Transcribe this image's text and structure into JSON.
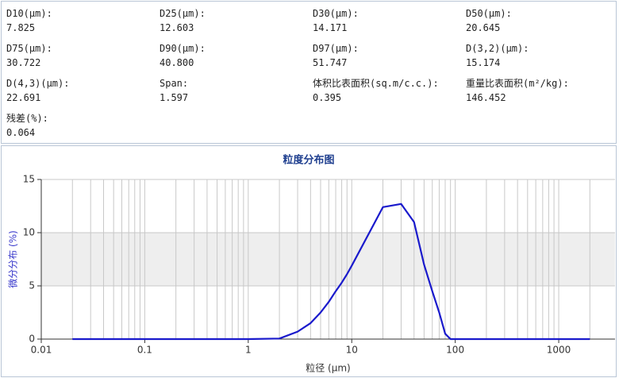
{
  "stats": [
    {
      "label": "D10(μm):",
      "value": "7.825"
    },
    {
      "label": "D25(μm):",
      "value": "12.603"
    },
    {
      "label": "D30(μm):",
      "value": "14.171"
    },
    {
      "label": "D50(μm):",
      "value": "20.645"
    },
    {
      "label": "D75(μm):",
      "value": "30.722"
    },
    {
      "label": "D90(μm):",
      "value": "40.800"
    },
    {
      "label": "D97(μm):",
      "value": "51.747"
    },
    {
      "label": "D(3,2)(μm):",
      "value": "15.174"
    },
    {
      "label": "D(4,3)(μm):",
      "value": "22.691"
    },
    {
      "label": "Span:",
      "value": "1.597"
    },
    {
      "label": "体积比表面积(sq.m/c.c.):",
      "value": "0.395"
    },
    {
      "label": "重量比表面积(m²/kg):",
      "value": "146.452"
    },
    {
      "label": "残差(%):",
      "value": "0.064"
    }
  ],
  "chart_data": {
    "type": "line",
    "title": "粒度分布图",
    "x_label": "粒径 (μm)",
    "y_label": "微分分布 (%)",
    "x_log": true,
    "xlim": [
      0.01,
      3500
    ],
    "xticks": [
      0.01,
      0.1,
      1,
      10,
      100,
      1000
    ],
    "ylim": [
      0,
      15
    ],
    "yticks": [
      0,
      5,
      10,
      15
    ],
    "band": [
      5,
      10
    ],
    "grid": true,
    "x": [
      0.02,
      0.03,
      0.04,
      0.05,
      0.06,
      0.07,
      0.08,
      0.09,
      0.1,
      0.2,
      0.3,
      0.4,
      0.5,
      0.6,
      0.7,
      0.8,
      0.9,
      1,
      2,
      3,
      4,
      5,
      6,
      7,
      8,
      9,
      10,
      20,
      30,
      40,
      50,
      60,
      70,
      80,
      90,
      100,
      200,
      300,
      400,
      500,
      600,
      700,
      800,
      900,
      1000,
      2000
    ],
    "series": [
      {
        "color": "#1a1acc",
        "values": [
          0,
          0,
          0,
          0,
          0,
          0,
          0,
          0,
          0,
          0,
          0,
          0,
          0,
          0,
          0,
          0,
          0,
          0,
          0.05,
          0.7,
          1.5,
          2.5,
          3.5,
          4.5,
          5.3,
          6.1,
          6.9,
          12.4,
          12.7,
          11,
          7,
          4.5,
          2.5,
          0.5,
          0,
          0,
          0,
          0,
          0,
          0,
          0,
          0,
          0,
          0,
          0,
          0
        ]
      }
    ]
  }
}
